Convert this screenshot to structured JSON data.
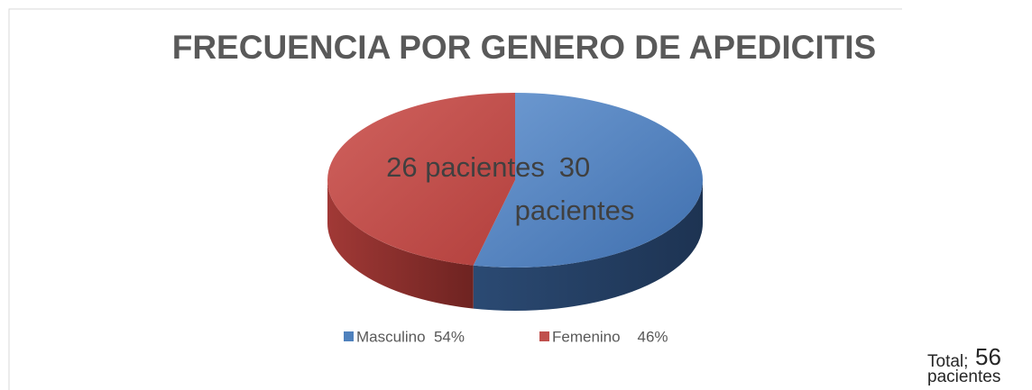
{
  "chart_data": {
    "type": "pie",
    "title": "FRECUENCIA POR GENERO DE APEDICITIS",
    "categories": [
      "Masculino  54%",
      "Femenino    46%"
    ],
    "values": [
      30,
      26
    ],
    "value_labels": [
      "30 pacientes",
      "26  pacientes"
    ],
    "colors": [
      "#4f81bd",
      "#c0504d"
    ],
    "legend": "bottom",
    "total": {
      "label": "Total;",
      "value": 56,
      "unit": "pacientes"
    }
  }
}
